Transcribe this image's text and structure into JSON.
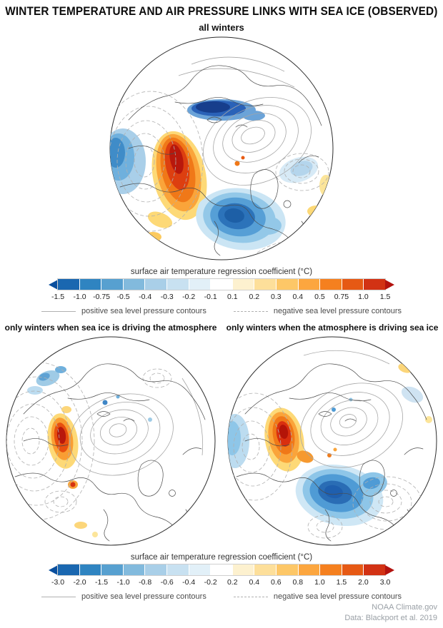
{
  "title": "WINTER TEMPERATURE AND AIR PRESSURE LINKS WITH SEA ICE (OBSERVED)",
  "panels": {
    "all": {
      "label": "all winters"
    },
    "ice_driving": {
      "label": "only winters when sea ice is driving the atmosphere"
    },
    "atm_driving": {
      "label": "only winters when the atmosphere is driving sea ice"
    }
  },
  "colorbar_top": {
    "label": "surface air temperature regression coefficient (°C)",
    "ticks": [
      "-1.5",
      "-1.0",
      "-0.75",
      "-0.5",
      "-0.4",
      "-0.3",
      "-0.2",
      "-0.1",
      "0.1",
      "0.2",
      "0.3",
      "0.4",
      "0.5",
      "0.75",
      "1.0",
      "1.5"
    ],
    "colors": [
      "#0a4f9e",
      "#1a67b0",
      "#2f84c1",
      "#57a0d0",
      "#82badd",
      "#a9cfe8",
      "#c8e1f1",
      "#e2f0f8",
      "#ffffff",
      "#fdf1cf",
      "#fddf9a",
      "#fdc767",
      "#fca63f",
      "#f5801f",
      "#e65914",
      "#d23214",
      "#b3130f"
    ]
  },
  "colorbar_bottom": {
    "label": "surface air temperature regression coefficient (°C)",
    "ticks": [
      "-3.0",
      "-2.0",
      "-1.5",
      "-1.0",
      "-0.8",
      "-0.6",
      "-0.4",
      "-0.2",
      "0.2",
      "0.4",
      "0.6",
      "0.8",
      "1.0",
      "1.5",
      "2.0",
      "3.0"
    ],
    "colors": [
      "#0a4f9e",
      "#1a67b0",
      "#2f84c1",
      "#57a0d0",
      "#82badd",
      "#a9cfe8",
      "#c8e1f1",
      "#e2f0f8",
      "#ffffff",
      "#fdf1cf",
      "#fddf9a",
      "#fdc767",
      "#fca63f",
      "#f5801f",
      "#e65914",
      "#d23214",
      "#b3130f"
    ]
  },
  "legend": {
    "positive": "positive sea level pressure contours",
    "negative": "negative sea level pressure contours"
  },
  "credit": {
    "source": "NOAA Climate.gov",
    "data_line": "Data: Blackport et al. 2019"
  },
  "chart_data": {
    "type": "heatmap",
    "title": "WINTER TEMPERATURE AND AIR PRESSURE LINKS WITH SEA ICE (OBSERVED)",
    "projection": "north polar map, 3 panels",
    "panels": [
      {
        "title": "all winters",
        "variable": "surface air temperature regression coefficient (°C)",
        "color_scale_ticks": [
          -1.5,
          -1.0,
          -0.75,
          -0.5,
          -0.4,
          -0.3,
          -0.2,
          -0.1,
          0.1,
          0.2,
          0.3,
          0.4,
          0.5,
          0.75,
          1.0,
          1.5
        ],
        "overlay": "sea level pressure contours (solid = positive, dashed = negative)"
      },
      {
        "title": "only winters when sea ice is driving the atmosphere",
        "variable": "surface air temperature regression coefficient (°C)",
        "color_scale_ticks": [
          -3.0,
          -2.0,
          -1.5,
          -1.0,
          -0.8,
          -0.6,
          -0.4,
          -0.2,
          0.2,
          0.4,
          0.6,
          0.8,
          1.0,
          1.5,
          2.0,
          3.0
        ],
        "overlay": "sea level pressure contours (solid = positive, dashed = negative)"
      },
      {
        "title": "only winters when the atmosphere is driving sea ice",
        "variable": "surface air temperature regression coefficient (°C)",
        "color_scale_ticks": [
          -3.0,
          -2.0,
          -1.5,
          -1.0,
          -0.8,
          -0.6,
          -0.4,
          -0.2,
          0.2,
          0.4,
          0.6,
          0.8,
          1.0,
          1.5,
          2.0,
          3.0
        ],
        "overlay": "sea level pressure contours (solid = positive, dashed = negative)"
      }
    ],
    "source": "NOAA Climate.gov",
    "credit": "Data: Blackport et al. 2019"
  }
}
